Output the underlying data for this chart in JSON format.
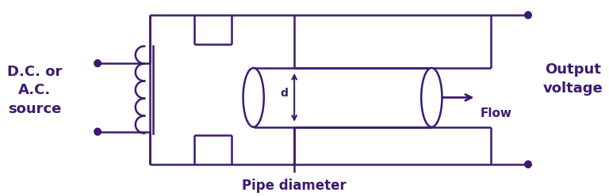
{
  "color": "#3d1a6e",
  "bg_color": "#ffffff",
  "figsize": [
    7.68,
    2.48
  ],
  "dpi": 100,
  "label_dc": "D.C. or\nA.C.\nsource",
  "label_output": "Output\nvoltage",
  "label_flow": "Flow",
  "label_pipe": "Pipe diameter",
  "label_d": "d",
  "lw": 1.8
}
